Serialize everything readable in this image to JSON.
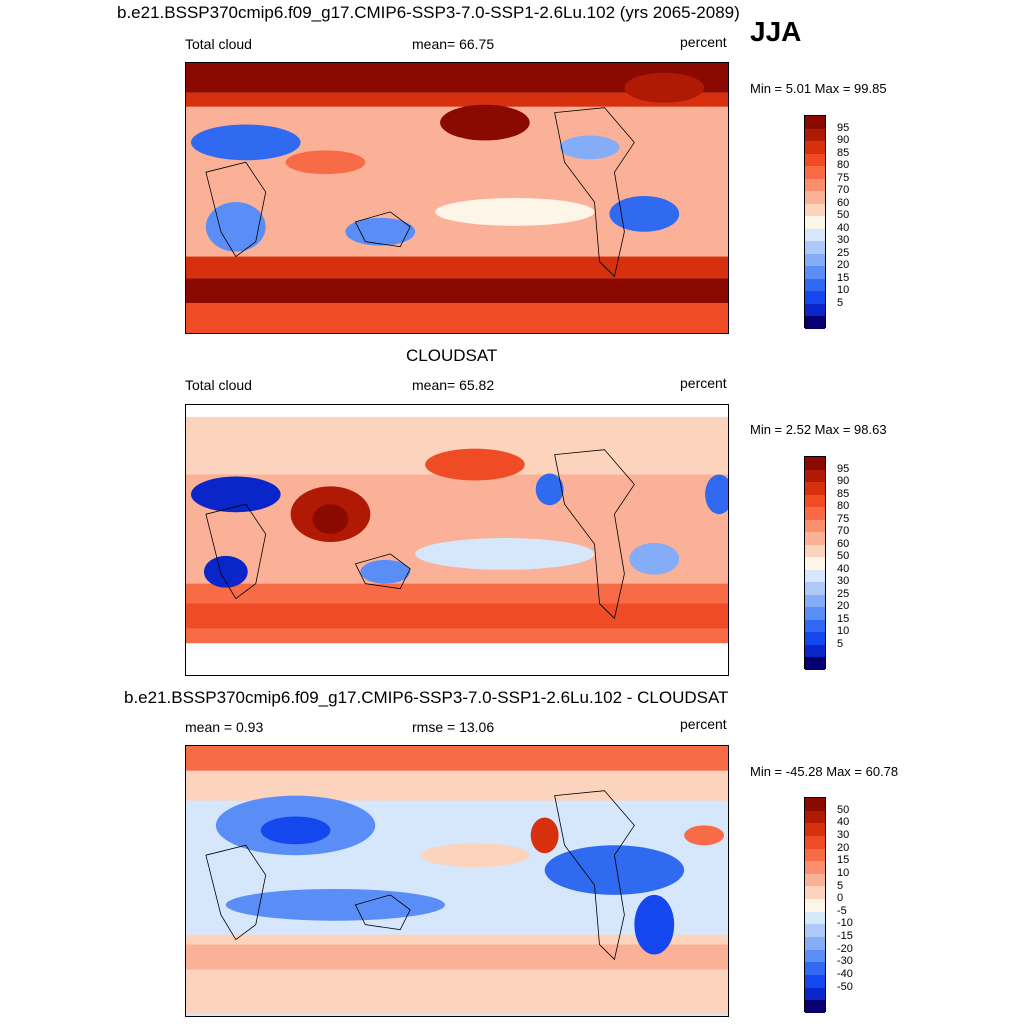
{
  "season": "JJA",
  "palette_abs": [
    "#08006e",
    "#0a26c8",
    "#1448ee",
    "#2f6af0",
    "#5a8ef6",
    "#84acf7",
    "#aec8f8",
    "#d6e6fb",
    "#fdf6e8",
    "#fcd3bd",
    "#fbb197",
    "#fb8f6d",
    "#f76c47",
    "#ef4b25",
    "#d6300e",
    "#b01a04",
    "#8a0a02"
  ],
  "panels": [
    {
      "title": "b.e21.BSSP370cmip6.f09_g17.CMIP6-SSP3-7.0-SSP1-2.6Lu.102 (yrs 2065-2089)",
      "left_label": "Total cloud",
      "center_label": "mean=  66.75",
      "right_label": "percent",
      "min_max": "Min =   5.01 Max =  99.85",
      "colorbar_labels": [
        "95",
        "90",
        "85",
        "80",
        "75",
        "70",
        "60",
        "50",
        "40",
        "30",
        "25",
        "20",
        "15",
        "10",
        "5"
      ],
      "palette": "abs"
    },
    {
      "title": "CLOUDSAT",
      "left_label": "Total cloud",
      "center_label": "mean=  65.82",
      "right_label": "percent",
      "min_max": "Min =   2.52 Max =  98.63",
      "colorbar_labels": [
        "95",
        "90",
        "85",
        "80",
        "75",
        "70",
        "60",
        "50",
        "40",
        "30",
        "25",
        "20",
        "15",
        "10",
        "5"
      ],
      "palette": "abs"
    },
    {
      "title": "b.e21.BSSP370cmip6.f09_g17.CMIP6-SSP3-7.0-SSP1-2.6Lu.102 - CLOUDSAT",
      "left_label": "mean =   0.93",
      "center_label": "rmse =  13.06",
      "right_label": "percent",
      "min_max": "Min = -45.28 Max =  60.78",
      "colorbar_labels": [
        "50",
        "40",
        "30",
        "20",
        "15",
        "10",
        "5",
        "0",
        "-5",
        "-10",
        "-15",
        "-20",
        "-30",
        "-40",
        "-50"
      ],
      "palette": "abs"
    }
  ]
}
